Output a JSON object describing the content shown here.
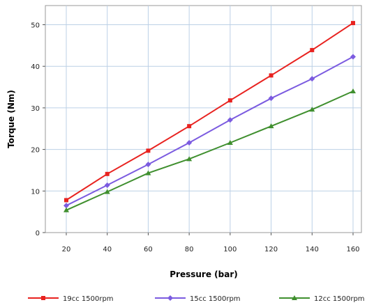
{
  "chart_data": {
    "type": "line",
    "title": "",
    "xlabel": "Pressure (bar)",
    "ylabel": "Torque (Nm)",
    "x": [
      20,
      40,
      60,
      80,
      100,
      120,
      140,
      160
    ],
    "xticks": [
      "20",
      "40",
      "60",
      "80",
      "100",
      "120",
      "140",
      "160"
    ],
    "xlim": [
      0,
      170
    ],
    "yticks": [
      "0",
      "10",
      "20",
      "30",
      "40",
      "50"
    ],
    "ylim": [
      0,
      55
    ],
    "grid": true,
    "legend_position": "bottom",
    "series": [
      {
        "name": "19cc 1500rpm",
        "color": "#e8221f",
        "marker": "square",
        "values": [
          7.8,
          14.1,
          19.7,
          25.6,
          31.8,
          37.8,
          43.9,
          50.4
        ]
      },
      {
        "name": "15cc 1500rpm",
        "color": "#7b5be0",
        "marker": "diamond",
        "values": [
          6.5,
          11.4,
          16.4,
          21.6,
          27.1,
          32.3,
          37.0,
          42.3
        ]
      },
      {
        "name": "12cc 1500rpm",
        "color": "#3f8f2e",
        "marker": "triangle",
        "values": [
          5.4,
          9.8,
          14.3,
          17.7,
          21.6,
          25.6,
          29.6,
          34.0
        ]
      }
    ]
  }
}
